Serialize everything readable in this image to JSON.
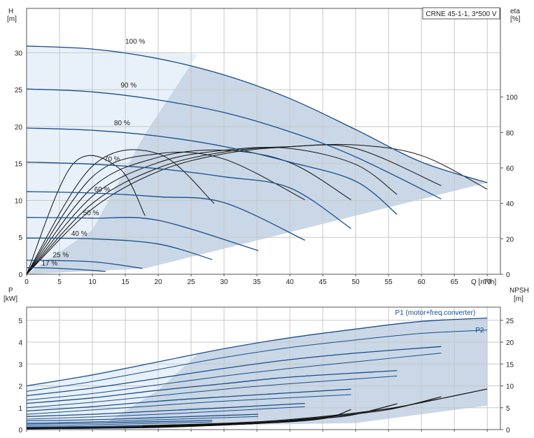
{
  "chart_data": [
    {
      "type": "line",
      "title": "CRNE 45-1-1, 3*500 V",
      "xlabel": "Q [m³/h]",
      "ylabel_line1": "H",
      "ylabel_line2": "[m]",
      "y2label_line1": "eta",
      "y2label_line2": "[%]",
      "xlim": [
        0,
        72
      ],
      "ylim": [
        0,
        36
      ],
      "y2lim": [
        0,
        150
      ],
      "x_ticks": [
        0,
        5,
        10,
        15,
        20,
        25,
        30,
        35,
        40,
        45,
        50,
        55,
        60,
        65,
        70
      ],
      "y_ticks": [
        0,
        5,
        10,
        15,
        20,
        25,
        30
      ],
      "y2_ticks": [
        0,
        20,
        40,
        60,
        80,
        100
      ],
      "grid": true,
      "speed_labels": [
        {
          "text": "100 %",
          "q": 16.5,
          "h": 31.2
        },
        {
          "text": "90 %",
          "q": 15.5,
          "h": 25.3
        },
        {
          "text": "80 %",
          "q": 14.5,
          "h": 20.2
        },
        {
          "text": "70 %",
          "q": 13,
          "h": 15.3
        },
        {
          "text": "60 %",
          "q": 11.5,
          "h": 11.2
        },
        {
          "text": "50 %",
          "q": 9.8,
          "h": 8.0
        },
        {
          "text": "40 %",
          "q": 8,
          "h": 5.2
        },
        {
          "text": "25 %",
          "q": 5.2,
          "h": 2.3
        },
        {
          "text": "17 %",
          "q": 3.5,
          "h": 1.2
        }
      ],
      "head_series": [
        {
          "speed": 100,
          "q": [
            0,
            10,
            20,
            30,
            40,
            50,
            60,
            70
          ],
          "h": [
            30.9,
            30.5,
            29.2,
            27.0,
            23.8,
            19.6,
            15.2,
            12.4
          ]
        },
        {
          "speed": 90,
          "q": [
            0,
            10,
            20,
            30,
            40,
            50,
            63
          ],
          "h": [
            25.1,
            24.7,
            23.6,
            21.9,
            19.3,
            15.9,
            10.2
          ]
        },
        {
          "speed": 80,
          "q": [
            0,
            10,
            20,
            30,
            40,
            50,
            56.3
          ],
          "h": [
            19.8,
            19.5,
            18.7,
            17.3,
            15.2,
            12.6,
            8.1
          ]
        },
        {
          "speed": 70,
          "q": [
            0,
            10,
            20,
            30,
            40,
            49.3
          ],
          "h": [
            15.2,
            14.9,
            14.3,
            13.2,
            11.7,
            6.2
          ]
        },
        {
          "speed": 60,
          "q": [
            0,
            10,
            20,
            30,
            42.3
          ],
          "h": [
            11.2,
            11.0,
            10.5,
            9.7,
            4.6
          ]
        },
        {
          "speed": 50,
          "q": [
            0,
            10,
            20,
            35.2
          ],
          "h": [
            7.7,
            7.6,
            7.3,
            3.2
          ]
        },
        {
          "speed": 40,
          "q": [
            0,
            10,
            20,
            28.2
          ],
          "h": [
            4.9,
            4.8,
            4.1,
            2.0
          ]
        },
        {
          "speed": 25,
          "q": [
            0,
            10,
            17.6
          ],
          "h": [
            1.9,
            1.7,
            0.8
          ]
        },
        {
          "speed": 17,
          "q": [
            0,
            5,
            12
          ],
          "h": [
            0.9,
            0.8,
            0.4
          ]
        }
      ],
      "eta_series": [
        {
          "speed": 100,
          "q": [
            0,
            10,
            20,
            30,
            40,
            50,
            60,
            70
          ],
          "eta": [
            0,
            37,
            58,
            68,
            72,
            73,
            67,
            48
          ]
        },
        {
          "speed": 90,
          "q": [
            0,
            10,
            20,
            30,
            40,
            50,
            63
          ],
          "eta": [
            0,
            40,
            60,
            69,
            72,
            71,
            50
          ]
        },
        {
          "speed": 80,
          "q": [
            0,
            10,
            20,
            30,
            40,
            50,
            56.3
          ],
          "eta": [
            0,
            44,
            63,
            70,
            71,
            62,
            45
          ]
        },
        {
          "speed": 70,
          "q": [
            0,
            10,
            20,
            30,
            40,
            49.3
          ],
          "eta": [
            0,
            49,
            66,
            70,
            63,
            42
          ]
        },
        {
          "speed": 60,
          "q": [
            0,
            10,
            20,
            30,
            42.3
          ],
          "eta": [
            0,
            55,
            68,
            65,
            42
          ]
        },
        {
          "speed": 50,
          "q": [
            0,
            10,
            20,
            28.5
          ],
          "eta": [
            0,
            61,
            68,
            40
          ]
        },
        {
          "speed": 40,
          "q": [
            0,
            7,
            14,
            18
          ],
          "eta": [
            0,
            62,
            60,
            33
          ]
        }
      ]
    },
    {
      "type": "line",
      "xlabel": "",
      "ylabel_line1": "P",
      "ylabel_line2": "[kW]",
      "y2label_line1": "NPSH",
      "y2label_line2": "[m]",
      "xlim": [
        0,
        72
      ],
      "ylim": [
        0,
        5.6
      ],
      "y2lim": [
        0,
        28
      ],
      "y_ticks": [
        0,
        1,
        2,
        3,
        4,
        5
      ],
      "y2_ticks": [
        0,
        5,
        10,
        15,
        20,
        25
      ],
      "grid": true,
      "series_labels": [
        {
          "text": "P1 (motor+freq.converter)",
          "q": 56,
          "p": 5.25
        },
        {
          "text": "P2",
          "q": 68.2,
          "p": 4.45
        }
      ],
      "p1_series": [
        {
          "speed": 100,
          "q": [
            0,
            10,
            20,
            30,
            40,
            50,
            60,
            70
          ],
          "p": [
            2.0,
            2.5,
            3.1,
            3.7,
            4.2,
            4.6,
            4.95,
            5.1
          ]
        },
        {
          "speed": 90,
          "q": [
            0,
            10,
            20,
            30,
            40,
            50,
            63
          ],
          "p": [
            1.55,
            1.9,
            2.35,
            2.8,
            3.2,
            3.5,
            3.8
          ]
        },
        {
          "speed": 80,
          "q": [
            0,
            10,
            20,
            30,
            40,
            56.3
          ],
          "p": [
            1.2,
            1.45,
            1.8,
            2.1,
            2.4,
            2.7
          ]
        },
        {
          "speed": 70,
          "q": [
            0,
            10,
            20,
            30,
            49.3
          ],
          "p": [
            0.85,
            1.05,
            1.3,
            1.5,
            1.85
          ]
        },
        {
          "speed": 60,
          "q": [
            0,
            10,
            20,
            30,
            42.3
          ],
          "p": [
            0.6,
            0.7,
            0.85,
            1.0,
            1.2
          ]
        },
        {
          "speed": 50,
          "q": [
            0,
            10,
            20,
            35.2
          ],
          "p": [
            0.4,
            0.45,
            0.55,
            0.7
          ]
        },
        {
          "speed": 40,
          "q": [
            0,
            10,
            28.2
          ],
          "p": [
            0.25,
            0.3,
            0.42
          ]
        },
        {
          "speed": 25,
          "q": [
            0,
            10,
            17.6
          ],
          "p": [
            0.12,
            0.14,
            0.16
          ]
        }
      ],
      "p2_series": [
        {
          "speed": 100,
          "q": [
            0,
            10,
            20,
            30,
            40,
            50,
            60,
            70
          ],
          "p": [
            1.75,
            2.2,
            2.75,
            3.3,
            3.75,
            4.1,
            4.4,
            4.55
          ]
        },
        {
          "speed": 90,
          "q": [
            0,
            10,
            20,
            30,
            40,
            50,
            63
          ],
          "p": [
            1.35,
            1.65,
            2.05,
            2.45,
            2.8,
            3.1,
            3.5
          ]
        },
        {
          "speed": 80,
          "q": [
            0,
            10,
            20,
            30,
            40,
            56.3
          ],
          "p": [
            1.0,
            1.25,
            1.55,
            1.85,
            2.1,
            2.45
          ]
        },
        {
          "speed": 70,
          "q": [
            0,
            10,
            20,
            30,
            49.3
          ],
          "p": [
            0.7,
            0.9,
            1.1,
            1.3,
            1.6
          ]
        },
        {
          "speed": 60,
          "q": [
            0,
            10,
            20,
            30,
            42.3
          ],
          "p": [
            0.48,
            0.58,
            0.7,
            0.85,
            1.05
          ]
        },
        {
          "speed": 50,
          "q": [
            0,
            10,
            20,
            35.2
          ],
          "p": [
            0.3,
            0.36,
            0.45,
            0.6
          ]
        },
        {
          "speed": 40,
          "q": [
            0,
            10,
            28.2
          ],
          "p": [
            0.18,
            0.22,
            0.35
          ]
        }
      ],
      "npsh_series": [
        {
          "speed": 100,
          "q": [
            0,
            20,
            35,
            45,
            55,
            62,
            70
          ],
          "npsh": [
            0.5,
            1.0,
            1.8,
            3.0,
            4.8,
            6.8,
            9.3
          ]
        },
        {
          "speed": 90,
          "q": [
            0,
            20,
            35,
            45,
            55,
            63
          ],
          "npsh": [
            0.4,
            0.9,
            1.6,
            2.8,
            4.6,
            7.5
          ]
        },
        {
          "speed": 80,
          "q": [
            0,
            20,
            35,
            45,
            50,
            56.3
          ],
          "npsh": [
            0.3,
            0.8,
            1.5,
            2.6,
            3.5,
            5.9
          ]
        },
        {
          "speed": 70,
          "q": [
            0,
            20,
            35,
            45,
            49.3
          ],
          "npsh": [
            0.3,
            0.7,
            1.4,
            2.5,
            4.6
          ]
        },
        {
          "speed": 60,
          "q": [
            0,
            20,
            35,
            42.3
          ],
          "npsh": [
            0.2,
            0.6,
            1.4,
            2.4
          ]
        },
        {
          "speed": 50,
          "q": [
            0,
            20,
            35.2
          ],
          "npsh": [
            0.2,
            0.5,
            1.4
          ]
        }
      ]
    }
  ],
  "colors": {
    "curve_blue": "#1a4d8c",
    "curve_black": "#111111",
    "area_light": "#e8f1fa",
    "area_main": "#c9d7e6",
    "grid": "#c8c8c8"
  }
}
